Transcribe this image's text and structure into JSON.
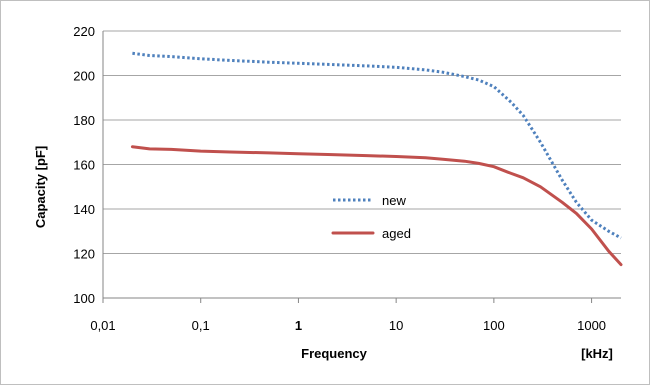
{
  "chart_data": {
    "type": "line",
    "title": "",
    "xlabel": "Frequency",
    "xunit": "[kHz]",
    "ylabel": "Capacity [pF]",
    "xscale": "log",
    "xlim": [
      0.01,
      2000
    ],
    "ylim": [
      100,
      220
    ],
    "xticks": [
      "0,01",
      "0,1",
      "1",
      "10",
      "100",
      "1000"
    ],
    "xtick_values": [
      0.01,
      0.1,
      1,
      10,
      100,
      1000
    ],
    "yticks": [
      100,
      120,
      140,
      160,
      180,
      200,
      220
    ],
    "grid": "horizontal",
    "legend_position": "center",
    "series": [
      {
        "name": "new",
        "style": "dotted",
        "color": "#4f81bd",
        "x": [
          0.02,
          0.03,
          0.05,
          0.1,
          0.2,
          0.5,
          1,
          2,
          5,
          10,
          20,
          30,
          50,
          70,
          100,
          150,
          200,
          300,
          500,
          700,
          1000,
          1500,
          2000
        ],
        "y": [
          210,
          209,
          208.5,
          207.5,
          206.8,
          206,
          205.5,
          205,
          204.3,
          203.7,
          202.5,
          201.5,
          199.5,
          198,
          195,
          188,
          182,
          170,
          153,
          143,
          135,
          130,
          127
        ]
      },
      {
        "name": "aged",
        "style": "solid",
        "color": "#c0504d",
        "x": [
          0.02,
          0.03,
          0.05,
          0.1,
          0.2,
          0.5,
          1,
          2,
          5,
          10,
          20,
          30,
          50,
          70,
          100,
          150,
          200,
          300,
          500,
          700,
          1000,
          1500,
          2000
        ],
        "y": [
          168,
          167,
          166.8,
          166,
          165.6,
          165.2,
          164.8,
          164.5,
          164,
          163.6,
          163,
          162.4,
          161.5,
          160.5,
          159,
          156,
          154,
          150,
          143,
          138,
          131,
          121,
          115
        ]
      }
    ]
  }
}
